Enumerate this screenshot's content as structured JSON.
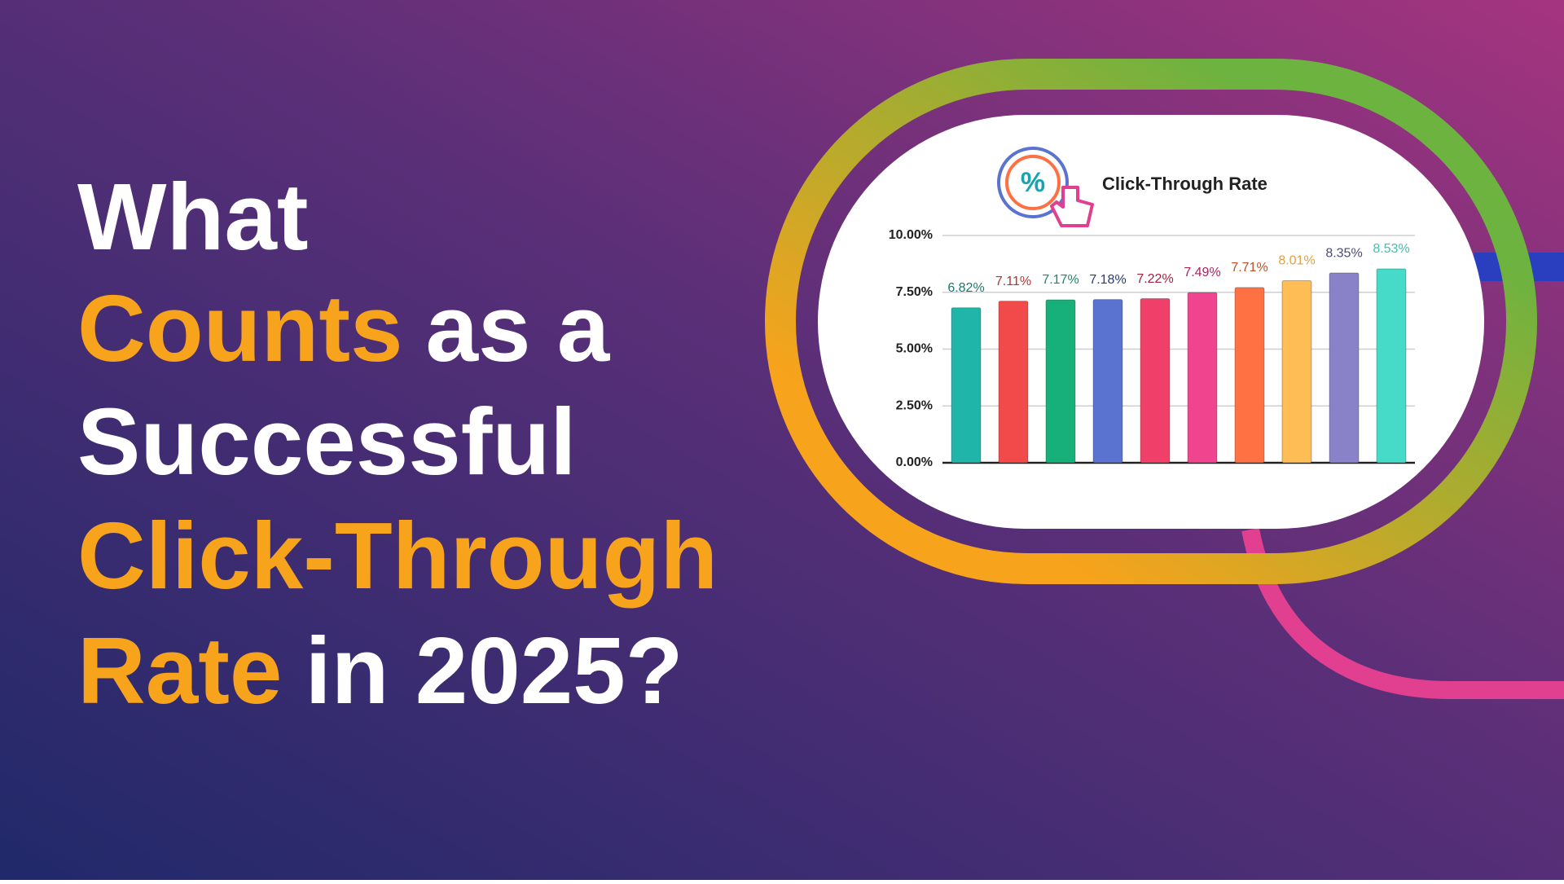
{
  "headline": {
    "lines": [
      [
        {
          "text": "What",
          "color": "#ffffff"
        }
      ],
      [
        {
          "text": "Counts",
          "color": "#f7a31c"
        },
        {
          "text": "as a",
          "color": "#ffffff"
        }
      ],
      [
        {
          "text": "Successful",
          "color": "#ffffff"
        }
      ],
      [
        {
          "text": "Click-Through",
          "color": "#f7a31c"
        }
      ],
      [
        {
          "text": "Rate",
          "color": "#f7a31c"
        },
        {
          "text": "in 2025?",
          "color": "#ffffff"
        }
      ]
    ]
  },
  "chart_data": {
    "type": "bar",
    "title": "Click-Through Rate",
    "categories": [
      null,
      null,
      null,
      null,
      null,
      null,
      null,
      null,
      null,
      null
    ],
    "values": [
      6.82,
      7.11,
      7.17,
      7.18,
      7.22,
      7.49,
      7.71,
      8.01,
      8.35,
      8.53
    ],
    "value_labels": [
      "6.82%",
      "7.11%",
      "7.17%",
      "7.18%",
      "7.22%",
      "7.49%",
      "7.71%",
      "8.01%",
      "8.35%",
      "8.53%"
    ],
    "colors": [
      "#1fb5a8",
      "#f24a4a",
      "#17b07a",
      "#5a72d0",
      "#f0406a",
      "#f0458e",
      "#ff7043",
      "#ffbe55",
      "#8a82c8",
      "#45dbc8"
    ],
    "label_colors": [
      "#1a7a6e",
      "#b0352f",
      "#1a8a60",
      "#2a3a7a",
      "#a02040",
      "#b02060",
      "#c0502a",
      "#e0a040",
      "#4a4a7a",
      "#40c0b0"
    ],
    "ylim": [
      0,
      10
    ],
    "yticks": [
      {
        "value": 0,
        "label": "0.00%"
      },
      {
        "value": 2.5,
        "label": "2.50%"
      },
      {
        "value": 5,
        "label": "5.00%"
      },
      {
        "value": 7.5,
        "label": "7.50%"
      },
      {
        "value": 10,
        "label": "10.00%"
      }
    ],
    "grid": true
  }
}
